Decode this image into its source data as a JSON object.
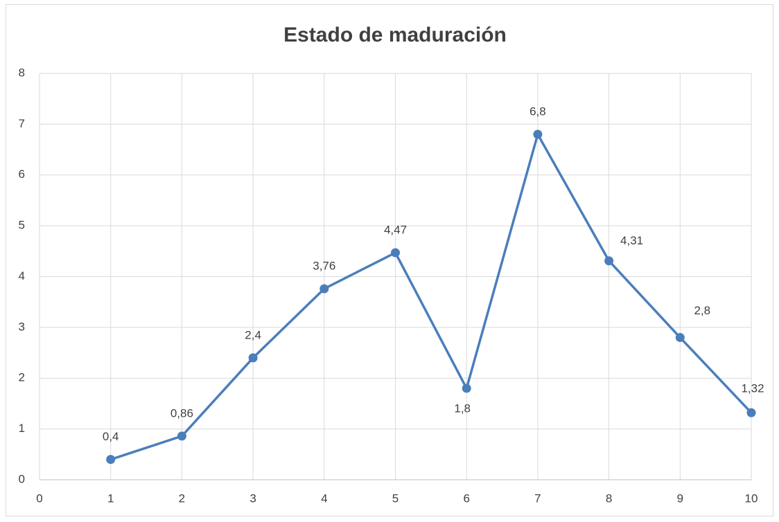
{
  "chart_data": {
    "type": "line",
    "title": "Estado de maduración",
    "x": [
      1,
      2,
      3,
      4,
      5,
      6,
      7,
      8,
      9,
      10
    ],
    "series": [
      {
        "color": "#4a7ebb",
        "values": [
          0.4,
          0.86,
          2.4,
          3.76,
          4.47,
          1.8,
          6.8,
          4.31,
          2.8,
          1.32
        ],
        "value_labels": [
          "0,4",
          "0,86",
          "2,4",
          "3,76",
          "4,47",
          "1,8",
          "6,8",
          "4,31",
          "2,8",
          "1,32"
        ]
      }
    ],
    "xlim": [
      0,
      10
    ],
    "xticks": [
      0,
      1,
      2,
      3,
      4,
      5,
      6,
      7,
      8,
      9,
      10
    ],
    "ylim": [
      0,
      8
    ],
    "yticks": [
      0,
      1,
      2,
      3,
      4,
      5,
      6,
      7,
      8
    ],
    "grid": true
  }
}
